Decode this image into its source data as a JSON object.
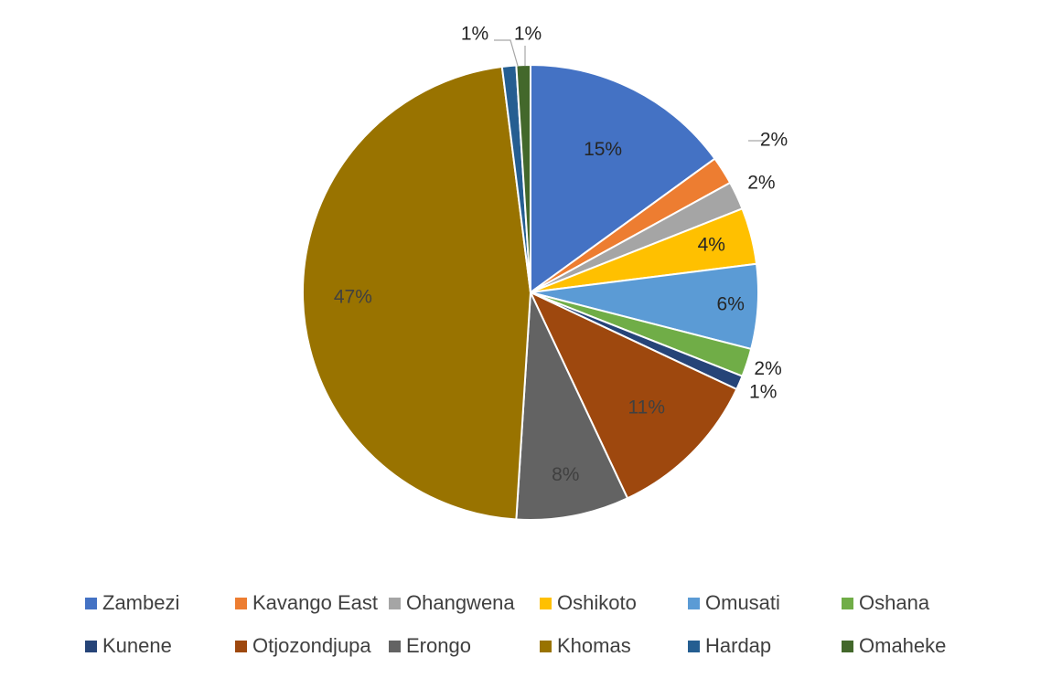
{
  "chart_data": {
    "type": "pie",
    "start_angle_deg": 0,
    "direction": "clockwise",
    "label_color_default": "#404040",
    "label_color_dark_slice": "#262626",
    "slices": [
      {
        "name": "Zambezi",
        "value": 15,
        "label": "15%",
        "color": "#4472C4"
      },
      {
        "name": "Kavango East",
        "value": 2,
        "label": "2%",
        "color": "#ED7D31"
      },
      {
        "name": "Ohangwena",
        "value": 2,
        "label": "2%",
        "color": "#A5A5A5"
      },
      {
        "name": "Oshikoto",
        "value": 4,
        "label": "4%",
        "color": "#FFC000"
      },
      {
        "name": "Omusati",
        "value": 6,
        "label": "6%",
        "color": "#5B9BD5"
      },
      {
        "name": "Oshana",
        "value": 2,
        "label": "2%",
        "color": "#70AD47"
      },
      {
        "name": "Kunene",
        "value": 1,
        "label": "1%",
        "color": "#264478"
      },
      {
        "name": "Otjozondjupa",
        "value": 11,
        "label": "11%",
        "color": "#9E480E"
      },
      {
        "name": "Erongo",
        "value": 8,
        "label": "8%",
        "color": "#636363"
      },
      {
        "name": "Khomas",
        "value": 47,
        "label": "47%",
        "color": "#997300"
      },
      {
        "name": "Hardap",
        "value": 1,
        "label": "1%",
        "color": "#255E91"
      },
      {
        "name": "Omaheke",
        "value": 1,
        "label": "1%",
        "color": "#43682B"
      }
    ],
    "legend": {
      "position": "bottom",
      "rows": [
        [
          "Zambezi",
          "Kavango East",
          "Ohangwena",
          "Oshikoto",
          "Omusati",
          "Oshana"
        ],
        [
          "Kunene",
          "Otjozondjupa",
          "Erongo",
          "Khomas",
          "Hardap",
          "Omaheke"
        ]
      ]
    }
  }
}
